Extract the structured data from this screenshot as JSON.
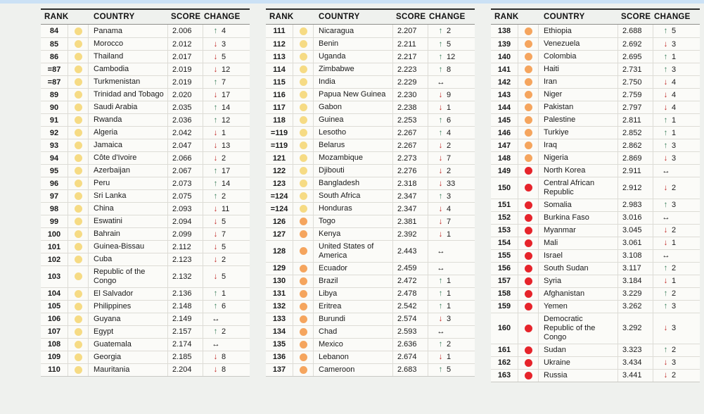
{
  "colors": {
    "top_strip": "#cbe1f5",
    "page_background": "#eff1ee",
    "tier_yellow": "#f6db84",
    "tier_orange": "#f5a55e",
    "tier_red": "#e6242b",
    "arrow_up": "#3c7f5d",
    "arrow_down": "#c22a27",
    "arrow_same": "#1a1a1a"
  },
  "arrows": {
    "up": "↑",
    "down": "↓",
    "same": "↔"
  },
  "chart_data": {
    "type": "table",
    "columns": [
      "RANK",
      "COUNTRY",
      "SCORE",
      "CHANGE"
    ],
    "tables": [
      {
        "rows": [
          {
            "rank": "84",
            "tier": "yellow",
            "country": "Panama",
            "score": "2.006",
            "change_dir": "up",
            "change_val": "4"
          },
          {
            "rank": "85",
            "tier": "yellow",
            "country": "Morocco",
            "score": "2.012",
            "change_dir": "down",
            "change_val": "3"
          },
          {
            "rank": "86",
            "tier": "yellow",
            "country": "Thailand",
            "score": "2.017",
            "change_dir": "down",
            "change_val": "5"
          },
          {
            "rank": "=87",
            "tier": "yellow",
            "country": "Cambodia",
            "score": "2.019",
            "change_dir": "down",
            "change_val": "12"
          },
          {
            "rank": "=87",
            "tier": "yellow",
            "country": "Turkmenistan",
            "score": "2.019",
            "change_dir": "up",
            "change_val": "7"
          },
          {
            "rank": "89",
            "tier": "yellow",
            "country": "Trinidad and Tobago",
            "score": "2.020",
            "change_dir": "down",
            "change_val": "17"
          },
          {
            "rank": "90",
            "tier": "yellow",
            "country": "Saudi Arabia",
            "score": "2.035",
            "change_dir": "up",
            "change_val": "14"
          },
          {
            "rank": "91",
            "tier": "yellow",
            "country": "Rwanda",
            "score": "2.036",
            "change_dir": "up",
            "change_val": "12"
          },
          {
            "rank": "92",
            "tier": "yellow",
            "country": "Algeria",
            "score": "2.042",
            "change_dir": "down",
            "change_val": "1"
          },
          {
            "rank": "93",
            "tier": "yellow",
            "country": "Jamaica",
            "score": "2.047",
            "change_dir": "down",
            "change_val": "13"
          },
          {
            "rank": "94",
            "tier": "yellow",
            "country": "Côte d'Ivoire",
            "score": "2.066",
            "change_dir": "down",
            "change_val": "2"
          },
          {
            "rank": "95",
            "tier": "yellow",
            "country": "Azerbaijan",
            "score": "2.067",
            "change_dir": "up",
            "change_val": "17"
          },
          {
            "rank": "96",
            "tier": "yellow",
            "country": "Peru",
            "score": "2.073",
            "change_dir": "up",
            "change_val": "14"
          },
          {
            "rank": "97",
            "tier": "yellow",
            "country": "Sri Lanka",
            "score": "2.075",
            "change_dir": "up",
            "change_val": "2"
          },
          {
            "rank": "98",
            "tier": "yellow",
            "country": "China",
            "score": "2.093",
            "change_dir": "down",
            "change_val": "11"
          },
          {
            "rank": "99",
            "tier": "yellow",
            "country": "Eswatini",
            "score": "2.094",
            "change_dir": "down",
            "change_val": "5"
          },
          {
            "rank": "100",
            "tier": "yellow",
            "country": "Bahrain",
            "score": "2.099",
            "change_dir": "down",
            "change_val": "7"
          },
          {
            "rank": "101",
            "tier": "yellow",
            "country": "Guinea-Bissau",
            "score": "2.112",
            "change_dir": "down",
            "change_val": "5"
          },
          {
            "rank": "102",
            "tier": "yellow",
            "country": "Cuba",
            "score": "2.123",
            "change_dir": "down",
            "change_val": "2"
          },
          {
            "rank": "103",
            "tier": "yellow",
            "country": "Republic of the Congo",
            "score": "2.132",
            "change_dir": "down",
            "change_val": "5"
          },
          {
            "rank": "104",
            "tier": "yellow",
            "country": "El Salvador",
            "score": "2.136",
            "change_dir": "up",
            "change_val": "1"
          },
          {
            "rank": "105",
            "tier": "yellow",
            "country": "Philippines",
            "score": "2.148",
            "change_dir": "up",
            "change_val": "6"
          },
          {
            "rank": "106",
            "tier": "yellow",
            "country": "Guyana",
            "score": "2.149",
            "change_dir": "same",
            "change_val": ""
          },
          {
            "rank": "107",
            "tier": "yellow",
            "country": "Egypt",
            "score": "2.157",
            "change_dir": "up",
            "change_val": "2"
          },
          {
            "rank": "108",
            "tier": "yellow",
            "country": "Guatemala",
            "score": "2.174",
            "change_dir": "same",
            "change_val": ""
          },
          {
            "rank": "109",
            "tier": "yellow",
            "country": "Georgia",
            "score": "2.185",
            "change_dir": "down",
            "change_val": "8"
          },
          {
            "rank": "110",
            "tier": "yellow",
            "country": "Mauritania",
            "score": "2.204",
            "change_dir": "down",
            "change_val": "8"
          }
        ]
      },
      {
        "rows": [
          {
            "rank": "111",
            "tier": "yellow",
            "country": "Nicaragua",
            "score": "2.207",
            "change_dir": "up",
            "change_val": "2"
          },
          {
            "rank": "112",
            "tier": "yellow",
            "country": "Benin",
            "score": "2.211",
            "change_dir": "up",
            "change_val": "5"
          },
          {
            "rank": "113",
            "tier": "yellow",
            "country": "Uganda",
            "score": "2.217",
            "change_dir": "up",
            "change_val": "12"
          },
          {
            "rank": "114",
            "tier": "yellow",
            "country": "Zimbabwe",
            "score": "2.223",
            "change_dir": "up",
            "change_val": "8"
          },
          {
            "rank": "115",
            "tier": "yellow",
            "country": "India",
            "score": "2.229",
            "change_dir": "same",
            "change_val": ""
          },
          {
            "rank": "116",
            "tier": "yellow",
            "country": "Papua New Guinea",
            "score": "2.230",
            "change_dir": "down",
            "change_val": "9"
          },
          {
            "rank": "117",
            "tier": "yellow",
            "country": "Gabon",
            "score": "2.238",
            "change_dir": "down",
            "change_val": "1"
          },
          {
            "rank": "118",
            "tier": "yellow",
            "country": "Guinea",
            "score": "2.253",
            "change_dir": "up",
            "change_val": "6"
          },
          {
            "rank": "=119",
            "tier": "yellow",
            "country": "Lesotho",
            "score": "2.267",
            "change_dir": "up",
            "change_val": "4"
          },
          {
            "rank": "=119",
            "tier": "yellow",
            "country": "Belarus",
            "score": "2.267",
            "change_dir": "down",
            "change_val": "2"
          },
          {
            "rank": "121",
            "tier": "yellow",
            "country": "Mozambique",
            "score": "2.273",
            "change_dir": "down",
            "change_val": "7"
          },
          {
            "rank": "122",
            "tier": "yellow",
            "country": "Djibouti",
            "score": "2.276",
            "change_dir": "down",
            "change_val": "2"
          },
          {
            "rank": "123",
            "tier": "yellow",
            "country": "Bangladesh",
            "score": "2.318",
            "change_dir": "down",
            "change_val": "33"
          },
          {
            "rank": "=124",
            "tier": "yellow",
            "country": "South Africa",
            "score": "2.347",
            "change_dir": "up",
            "change_val": "3"
          },
          {
            "rank": "=124",
            "tier": "yellow",
            "country": "Honduras",
            "score": "2.347",
            "change_dir": "down",
            "change_val": "4"
          },
          {
            "rank": "126",
            "tier": "orange",
            "country": "Togo",
            "score": "2.381",
            "change_dir": "down",
            "change_val": "7"
          },
          {
            "rank": "127",
            "tier": "orange",
            "country": "Kenya",
            "score": "2.392",
            "change_dir": "down",
            "change_val": "1"
          },
          {
            "rank": "128",
            "tier": "orange",
            "country": "United States of America",
            "score": "2.443",
            "change_dir": "same",
            "change_val": ""
          },
          {
            "rank": "129",
            "tier": "orange",
            "country": "Ecuador",
            "score": "2.459",
            "change_dir": "same",
            "change_val": ""
          },
          {
            "rank": "130",
            "tier": "orange",
            "country": "Brazil",
            "score": "2.472",
            "change_dir": "up",
            "change_val": "1"
          },
          {
            "rank": "131",
            "tier": "orange",
            "country": "Libya",
            "score": "2.478",
            "change_dir": "up",
            "change_val": "1"
          },
          {
            "rank": "132",
            "tier": "orange",
            "country": "Eritrea",
            "score": "2.542",
            "change_dir": "up",
            "change_val": "1"
          },
          {
            "rank": "133",
            "tier": "orange",
            "country": "Burundi",
            "score": "2.574",
            "change_dir": "down",
            "change_val": "3"
          },
          {
            "rank": "134",
            "tier": "orange",
            "country": "Chad",
            "score": "2.593",
            "change_dir": "same",
            "change_val": ""
          },
          {
            "rank": "135",
            "tier": "orange",
            "country": "Mexico",
            "score": "2.636",
            "change_dir": "up",
            "change_val": "2"
          },
          {
            "rank": "136",
            "tier": "orange",
            "country": "Lebanon",
            "score": "2.674",
            "change_dir": "down",
            "change_val": "1"
          },
          {
            "rank": "137",
            "tier": "orange",
            "country": "Cameroon",
            "score": "2.683",
            "change_dir": "up",
            "change_val": "5"
          }
        ]
      },
      {
        "rows": [
          {
            "rank": "138",
            "tier": "orange",
            "country": "Ethiopia",
            "score": "2.688",
            "change_dir": "up",
            "change_val": "5"
          },
          {
            "rank": "139",
            "tier": "orange",
            "country": "Venezuela",
            "score": "2.692",
            "change_dir": "down",
            "change_val": "3"
          },
          {
            "rank": "140",
            "tier": "orange",
            "country": "Colombia",
            "score": "2.695",
            "change_dir": "up",
            "change_val": "1"
          },
          {
            "rank": "141",
            "tier": "orange",
            "country": "Haiti",
            "score": "2.731",
            "change_dir": "up",
            "change_val": "3"
          },
          {
            "rank": "142",
            "tier": "orange",
            "country": "Iran",
            "score": "2.750",
            "change_dir": "down",
            "change_val": "4"
          },
          {
            "rank": "143",
            "tier": "orange",
            "country": "Niger",
            "score": "2.759",
            "change_dir": "down",
            "change_val": "4"
          },
          {
            "rank": "144",
            "tier": "orange",
            "country": "Pakistan",
            "score": "2.797",
            "change_dir": "down",
            "change_val": "4"
          },
          {
            "rank": "145",
            "tier": "orange",
            "country": "Palestine",
            "score": "2.811",
            "change_dir": "up",
            "change_val": "1"
          },
          {
            "rank": "146",
            "tier": "orange",
            "country": "Turkiye",
            "score": "2.852",
            "change_dir": "up",
            "change_val": "1"
          },
          {
            "rank": "147",
            "tier": "orange",
            "country": "Iraq",
            "score": "2.862",
            "change_dir": "up",
            "change_val": "3"
          },
          {
            "rank": "148",
            "tier": "orange",
            "country": "Nigeria",
            "score": "2.869",
            "change_dir": "down",
            "change_val": "3"
          },
          {
            "rank": "149",
            "tier": "red",
            "country": "North Korea",
            "score": "2.911",
            "change_dir": "same",
            "change_val": ""
          },
          {
            "rank": "150",
            "tier": "red",
            "country": "Central African Republic",
            "score": "2.912",
            "change_dir": "down",
            "change_val": "2"
          },
          {
            "rank": "151",
            "tier": "red",
            "country": "Somalia",
            "score": "2.983",
            "change_dir": "up",
            "change_val": "3"
          },
          {
            "rank": "152",
            "tier": "red",
            "country": "Burkina Faso",
            "score": "3.016",
            "change_dir": "same",
            "change_val": ""
          },
          {
            "rank": "153",
            "tier": "red",
            "country": "Myanmar",
            "score": "3.045",
            "change_dir": "down",
            "change_val": "2"
          },
          {
            "rank": "154",
            "tier": "red",
            "country": "Mali",
            "score": "3.061",
            "change_dir": "down",
            "change_val": "1"
          },
          {
            "rank": "155",
            "tier": "red",
            "country": "Israel",
            "score": "3.108",
            "change_dir": "same",
            "change_val": ""
          },
          {
            "rank": "156",
            "tier": "red",
            "country": "South Sudan",
            "score": "3.117",
            "change_dir": "up",
            "change_val": "2"
          },
          {
            "rank": "157",
            "tier": "red",
            "country": "Syria",
            "score": "3.184",
            "change_dir": "down",
            "change_val": "1"
          },
          {
            "rank": "158",
            "tier": "red",
            "country": "Afghanistan",
            "score": "3.229",
            "change_dir": "up",
            "change_val": "2"
          },
          {
            "rank": "159",
            "tier": "red",
            "country": "Yemen",
            "score": "3.262",
            "change_dir": "up",
            "change_val": "3"
          },
          {
            "rank": "160",
            "tier": "red",
            "country": "Democratic Republic of the Congo",
            "score": "3.292",
            "change_dir": "down",
            "change_val": "3"
          },
          {
            "rank": "161",
            "tier": "red",
            "country": "Sudan",
            "score": "3.323",
            "change_dir": "up",
            "change_val": "2"
          },
          {
            "rank": "162",
            "tier": "red",
            "country": "Ukraine",
            "score": "3.434",
            "change_dir": "down",
            "change_val": "3"
          },
          {
            "rank": "163",
            "tier": "red",
            "country": "Russia",
            "score": "3.441",
            "change_dir": "down",
            "change_val": "2"
          }
        ]
      }
    ]
  }
}
